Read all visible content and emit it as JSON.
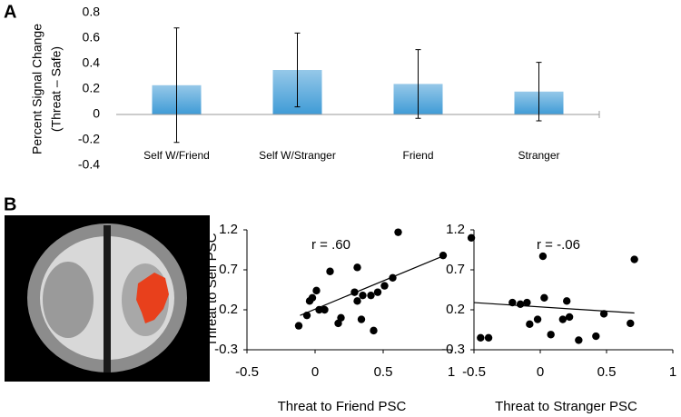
{
  "panel_labels": [
    "A",
    "B"
  ],
  "chart_data": [
    {
      "type": "bar",
      "ylabel": [
        "Percent Signal Change",
        "(Threat – Safe)"
      ],
      "categories": [
        "Self W/Friend",
        "Self W/Stranger",
        "Friend",
        "Stranger"
      ],
      "values": [
        0.23,
        0.35,
        0.24,
        0.18
      ],
      "errors": [
        0.45,
        0.29,
        0.27,
        0.23
      ],
      "color": "#3f9bd6",
      "ylim": [
        -0.4,
        0.8
      ],
      "yticks": [
        -0.4,
        -0.2,
        0,
        0.2,
        0.4,
        0.6,
        0.8
      ],
      "grid": false
    },
    {
      "type": "scatter",
      "xlabel": "Threat to Friend PSC",
      "ylabel": "Threat to Self PSC",
      "annotation": "r = .60",
      "x": [
        -0.12,
        -0.06,
        -0.04,
        -0.02,
        0.01,
        0.03,
        0.07,
        0.11,
        0.17,
        0.19,
        0.29,
        0.31,
        0.31,
        0.34,
        0.35,
        0.41,
        0.43,
        0.46,
        0.51,
        0.57,
        0.61,
        0.94
      ],
      "y": [
        0.0,
        0.13,
        0.31,
        0.35,
        0.44,
        0.2,
        0.2,
        0.68,
        0.03,
        0.1,
        0.42,
        0.73,
        0.31,
        0.08,
        0.38,
        0.38,
        -0.06,
        0.42,
        0.5,
        0.6,
        1.17,
        0.88
      ],
      "fit": {
        "x": [
          -0.11,
          0.95
        ],
        "y": [
          0.13,
          0.88
        ]
      },
      "color": "#000000",
      "xlim": [
        -0.5,
        1
      ],
      "xticks": [
        -0.5,
        0,
        0.5,
        1
      ],
      "ylim": [
        -0.3,
        1.2
      ],
      "yticks": [
        -0.3,
        0.2,
        0.7,
        1.2
      ]
    },
    {
      "type": "scatter",
      "xlabel": "Threat to Stranger PSC",
      "annotation": "r = -.06",
      "x": [
        -0.52,
        -0.45,
        -0.39,
        -0.21,
        -0.15,
        -0.1,
        -0.08,
        -0.02,
        0.02,
        0.03,
        0.08,
        0.17,
        0.2,
        0.22,
        0.29,
        0.42,
        0.48,
        0.68,
        0.71
      ],
      "y": [
        1.1,
        -0.15,
        -0.15,
        0.29,
        0.27,
        0.29,
        0.02,
        0.08,
        0.87,
        0.35,
        -0.11,
        0.08,
        0.31,
        0.11,
        -0.18,
        -0.13,
        0.15,
        0.03,
        0.83
      ],
      "fit": {
        "x": [
          -0.5,
          0.71
        ],
        "y": [
          0.29,
          0.16
        ]
      },
      "color": "#000000",
      "xlim": [
        -0.5,
        1
      ],
      "xticks": [
        -0.5,
        0,
        0.5,
        1
      ],
      "ylim": [
        -0.3,
        1.2
      ],
      "yticks": [
        -0.3,
        0.2,
        0.7,
        1.2
      ]
    }
  ]
}
